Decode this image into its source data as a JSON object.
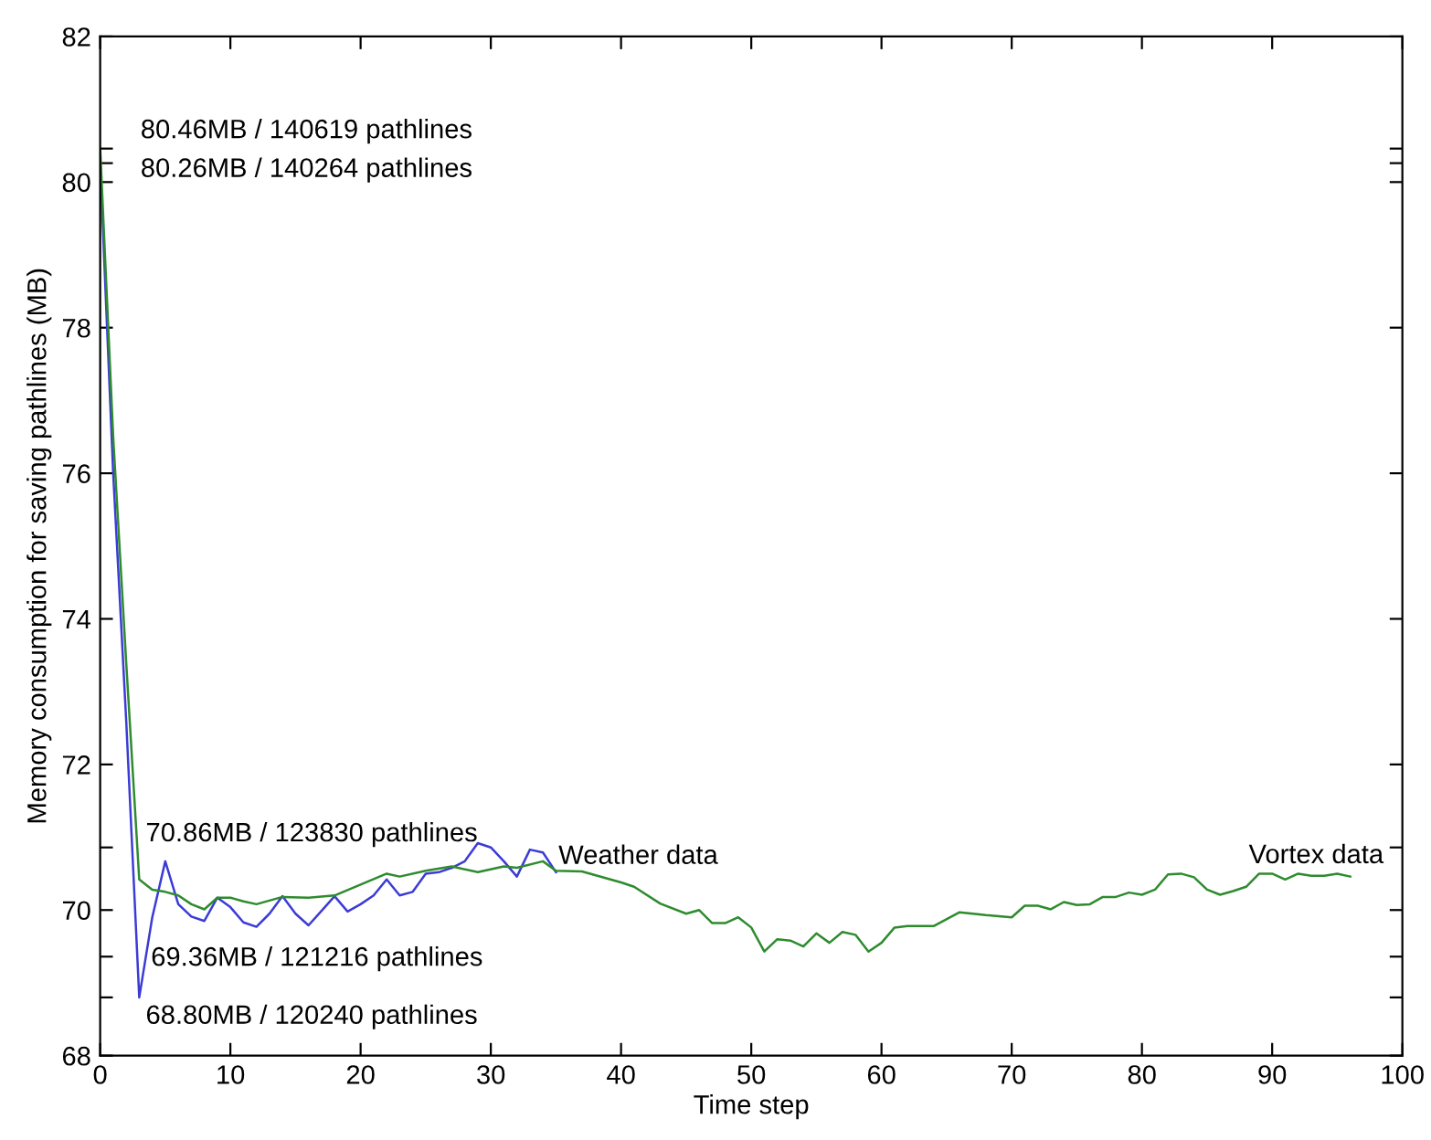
{
  "chart_data": {
    "type": "line",
    "xlabel": "Time step",
    "ylabel": "Memory consumption for saving pathlines (MB)",
    "xlim": [
      0,
      100
    ],
    "ylim": [
      68,
      82
    ],
    "xticks": [
      0,
      10,
      20,
      30,
      40,
      50,
      60,
      70,
      80,
      90,
      100
    ],
    "yticks": [
      68,
      70,
      72,
      74,
      76,
      78,
      80,
      82,
      {
        "value": 80.46,
        "label": null
      },
      {
        "value": 80.26,
        "label": null
      },
      {
        "value": 70.86,
        "label": null
      },
      {
        "value": 69.36,
        "label": null
      },
      {
        "value": 68.8,
        "label": null
      }
    ],
    "grid": false,
    "legend": false,
    "marker": "none",
    "line_style": "solid",
    "series": [
      {
        "name": "Weather data",
        "color": "#3b3bd6",
        "x": [
          0,
          1,
          2,
          3,
          4,
          5,
          6,
          7,
          8,
          9,
          10,
          11,
          12,
          13,
          14,
          15,
          16,
          17,
          18,
          19,
          20,
          21,
          22,
          23,
          24,
          25,
          26,
          27,
          28,
          29,
          30,
          31,
          32,
          33,
          34,
          35
        ],
        "values": [
          80.26,
          76.0,
          72.6,
          68.8,
          69.9,
          70.67,
          70.08,
          69.91,
          69.85,
          70.17,
          70.04,
          69.83,
          69.77,
          69.95,
          70.19,
          69.95,
          69.79,
          69.99,
          70.19,
          69.98,
          70.08,
          70.2,
          70.42,
          70.2,
          70.25,
          70.5,
          70.52,
          70.58,
          70.67,
          70.92,
          70.86,
          70.67,
          70.46,
          70.83,
          70.79,
          70.52
        ]
      },
      {
        "name": "Vortex data",
        "color": "#2e8b2e",
        "x": [
          0,
          1,
          2,
          3,
          4,
          5,
          6,
          7,
          8,
          9,
          10,
          11,
          12,
          14,
          16,
          18,
          20,
          22,
          23,
          25,
          27,
          29,
          31,
          32,
          34,
          35,
          37,
          40,
          41,
          43,
          45,
          46,
          47,
          48,
          49,
          50,
          51,
          52,
          53,
          54,
          55,
          56,
          57,
          58,
          59,
          60,
          61,
          62,
          64,
          66,
          68,
          70,
          71,
          72,
          73,
          74,
          75,
          76,
          77,
          78,
          79,
          80,
          81,
          82,
          83,
          84,
          85,
          86,
          87,
          88,
          89,
          90,
          91,
          92,
          93,
          94,
          95,
          96
        ],
        "values": [
          80.46,
          76.5,
          73.4,
          70.42,
          70.28,
          70.25,
          70.2,
          70.08,
          70.01,
          70.17,
          70.17,
          70.12,
          70.08,
          70.18,
          70.17,
          70.2,
          70.35,
          70.5,
          70.46,
          70.54,
          70.6,
          70.52,
          70.6,
          70.58,
          70.67,
          70.54,
          70.53,
          70.38,
          70.32,
          70.09,
          69.95,
          70.0,
          69.82,
          69.82,
          69.9,
          69.76,
          69.43,
          69.6,
          69.58,
          69.5,
          69.68,
          69.55,
          69.7,
          69.66,
          69.43,
          69.55,
          69.76,
          69.78,
          69.78,
          69.97,
          69.93,
          69.9,
          70.06,
          70.06,
          70.01,
          70.11,
          70.07,
          70.08,
          70.18,
          70.18,
          70.24,
          70.21,
          70.28,
          70.49,
          70.5,
          70.45,
          70.28,
          70.21,
          70.26,
          70.32,
          70.5,
          70.5,
          70.42,
          70.5,
          70.47,
          70.47,
          70.5,
          70.46
        ]
      }
    ],
    "annotations": [
      "80.46MB / 140619 pathlines",
      "80.26MB / 140264 pathlines",
      "70.86MB / 123830 pathlines",
      "69.36MB / 121216 pathlines",
      "68.80MB / 120240 pathlines"
    ]
  }
}
